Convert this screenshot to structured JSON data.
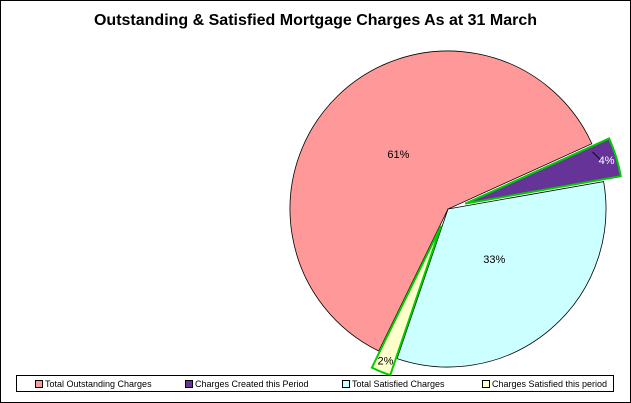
{
  "chart_data": {
    "type": "pie",
    "title": "Outstanding & Satisfied Mortgage Charges As at 31 March",
    "slices": [
      {
        "name": "Total Outstanding Charges",
        "value": 61,
        "label": "61%",
        "color": "#ff9999",
        "exploded": false
      },
      {
        "name": "Charges Created this Period",
        "value": 4,
        "label": "4%",
        "color": "#663399",
        "exploded": true
      },
      {
        "name": "Total Satisfied Charges",
        "value": 33,
        "label": "33%",
        "color": "#ccffff",
        "exploded": false
      },
      {
        "name": "Charges Satisfied this period",
        "value": 2,
        "label": "2%",
        "color": "#ffffcc",
        "exploded": true
      }
    ],
    "legend_position": "bottom",
    "highlight_color": "#00cc00"
  }
}
